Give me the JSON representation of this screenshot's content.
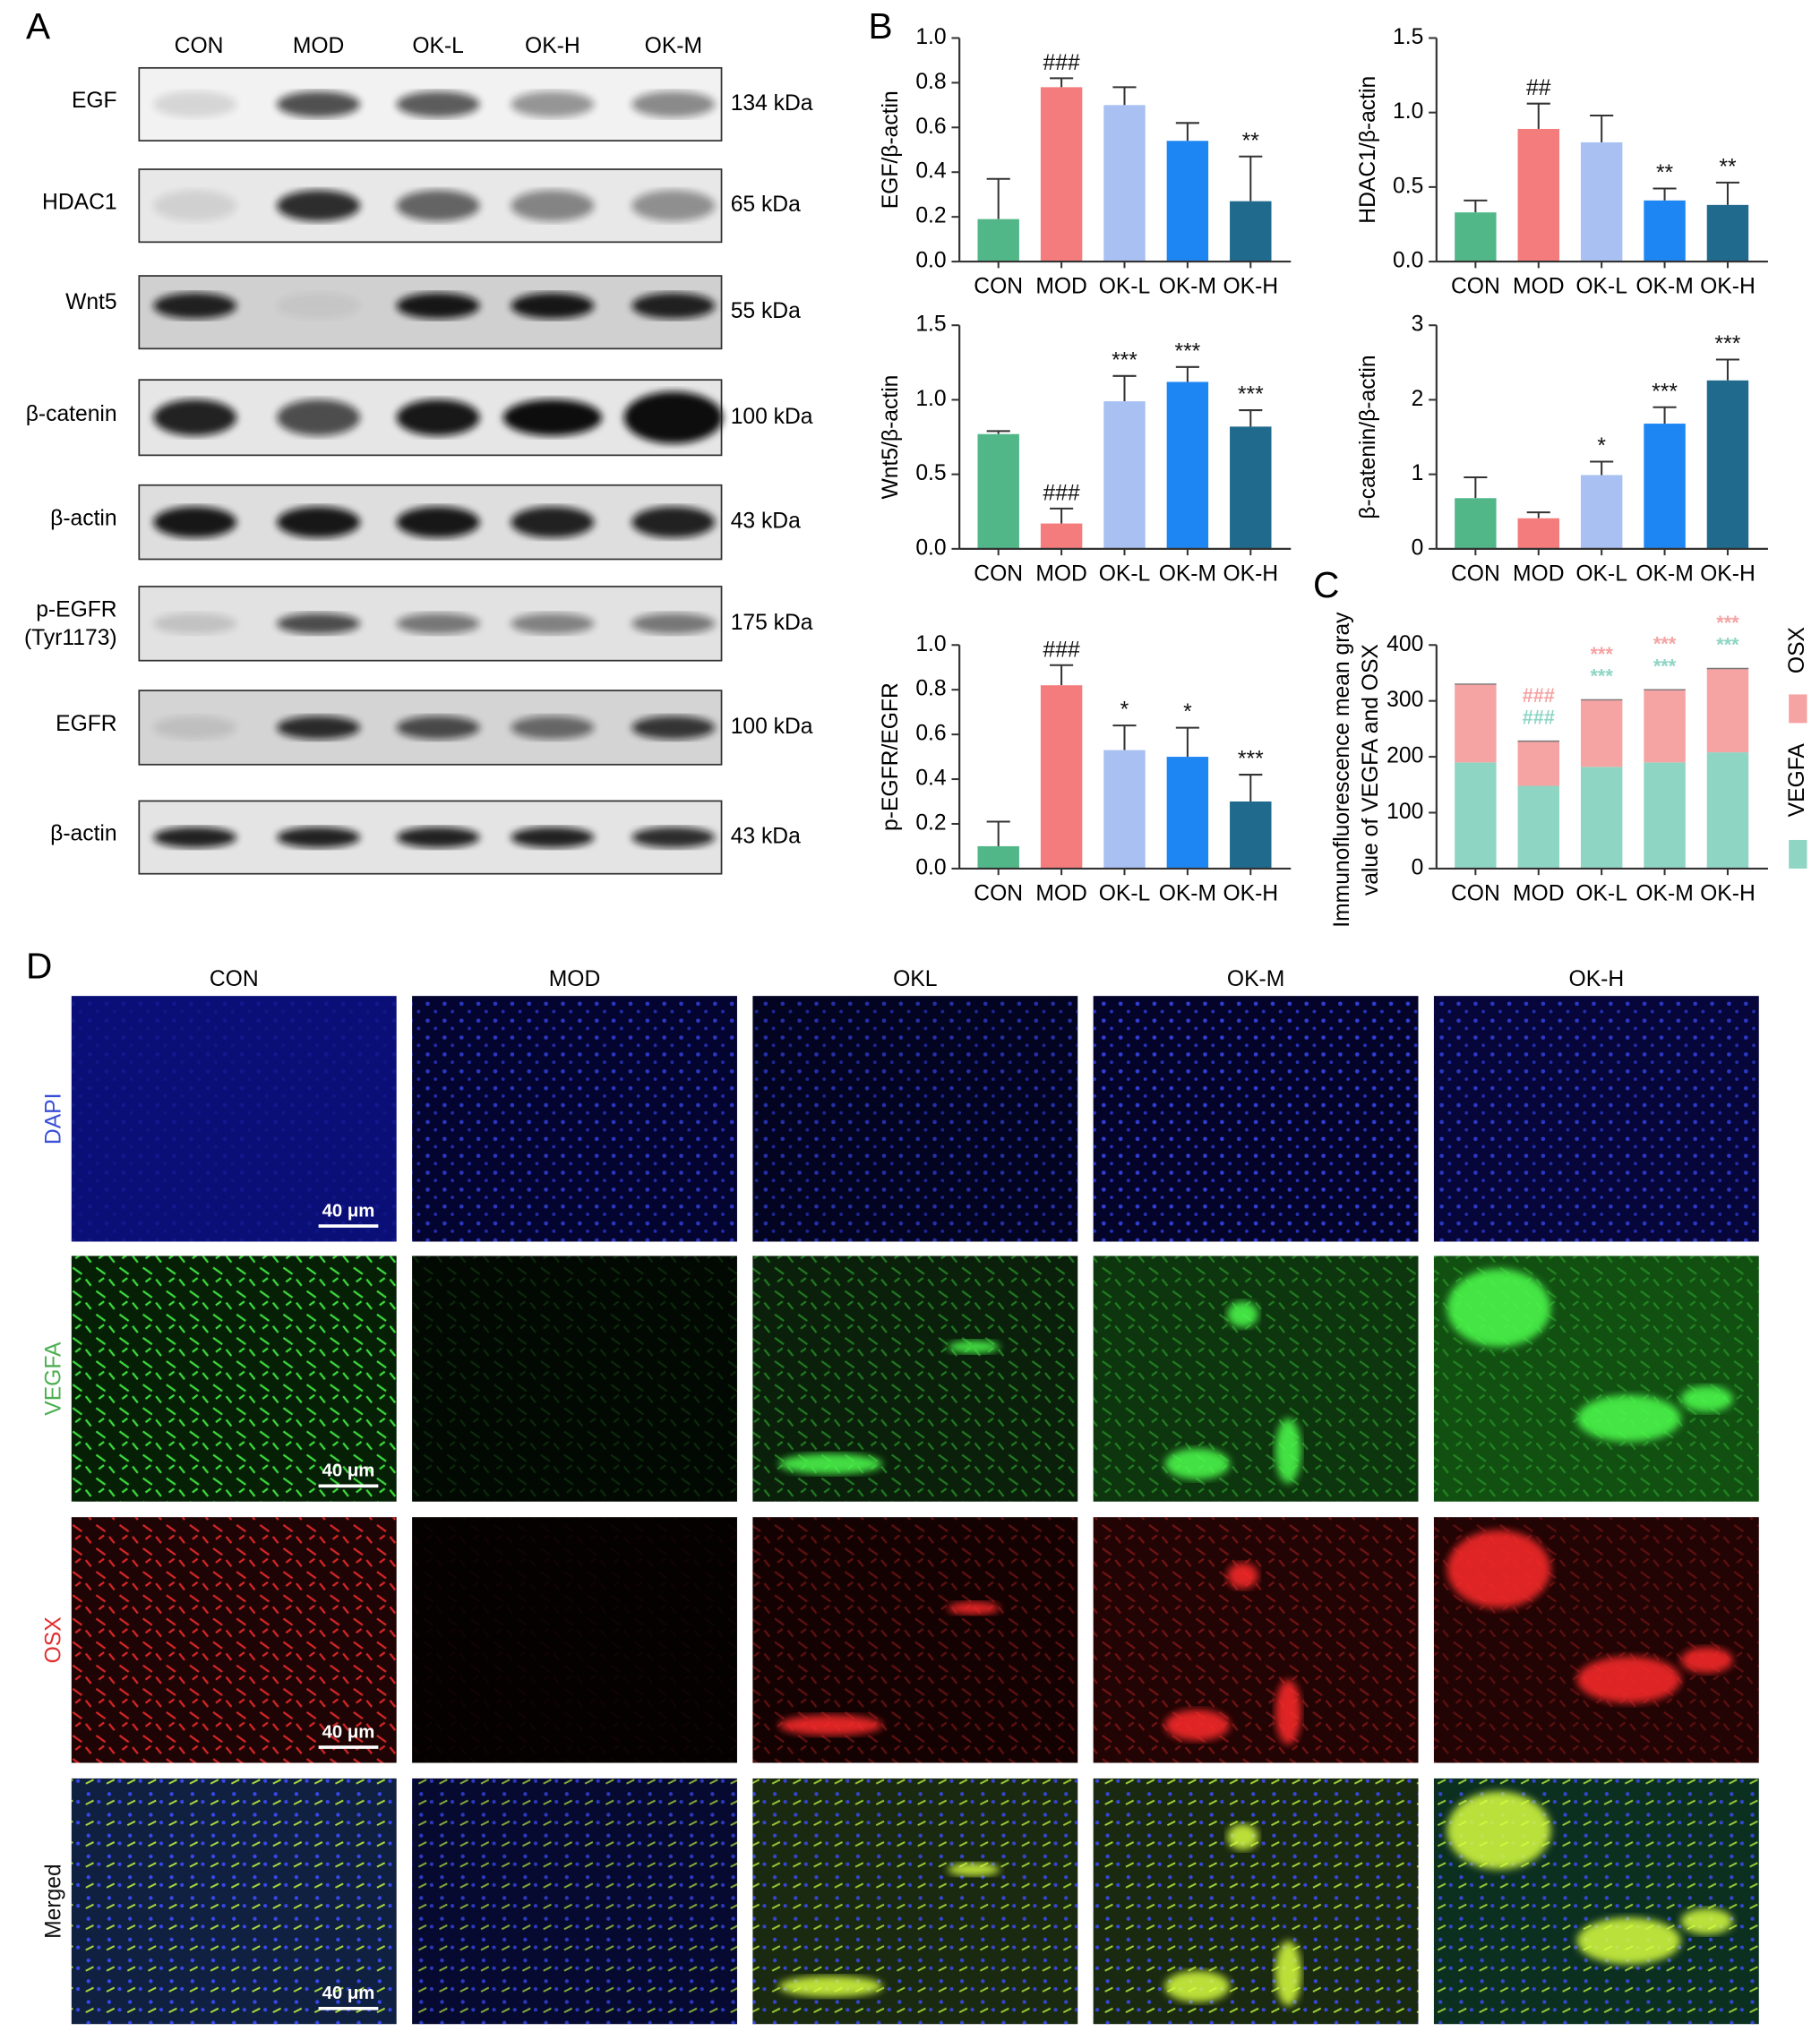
{
  "panel_labels": [
    "A",
    "B",
    "C",
    "D"
  ],
  "western_blot": {
    "lanes": [
      "CON",
      "MOD",
      "OK-L",
      "OK-H",
      "OK-M"
    ],
    "rows": [
      {
        "protein": "EGF",
        "size": "134 kDa"
      },
      {
        "protein": "HDAC1",
        "size": "65 kDa"
      },
      {
        "protein": "Wnt5",
        "size": "55 kDa"
      },
      {
        "protein": "β-catenin",
        "size": "100 kDa"
      },
      {
        "protein": "β-actin",
        "size": "43 kDa"
      },
      {
        "protein": [
          "p-EGFR",
          "(Tyr1173)"
        ],
        "size": "175 kDa"
      },
      {
        "protein": "EGFR",
        "size": "100 kDa"
      },
      {
        "protein": "β-actin",
        "size": "43 kDa"
      }
    ]
  },
  "chart_data": [
    {
      "type": "bar",
      "ylabel": "EGF/β-actin",
      "categories": [
        "CON",
        "MOD",
        "OK-L",
        "OK-M",
        "OK-H"
      ],
      "values": [
        0.19,
        0.78,
        0.7,
        0.54,
        0.27
      ],
      "errors": [
        0.18,
        0.04,
        0.08,
        0.08,
        0.2
      ],
      "colors": [
        "#52b788",
        "#f47c7c",
        "#a9c0f2",
        "#1e86f2",
        "#1f6a8d"
      ],
      "annotations": [
        null,
        "###",
        null,
        null,
        "**"
      ],
      "ylim": [
        0,
        1
      ],
      "yticks": [
        {
          "value": 0,
          "label": "0.0"
        },
        0.2,
        0.4,
        0.6,
        0.8,
        {
          "value": 1,
          "label": "1.0"
        }
      ]
    },
    {
      "type": "bar",
      "ylabel": "HDAC1/β-actin",
      "categories": [
        "CON",
        "MOD",
        "OK-L",
        "OK-M",
        "OK-H"
      ],
      "values": [
        0.33,
        0.89,
        0.8,
        0.41,
        0.38
      ],
      "errors": [
        0.08,
        0.17,
        0.18,
        0.08,
        0.15
      ],
      "colors": [
        "#52b788",
        "#f47c7c",
        "#a9c0f2",
        "#1e86f2",
        "#1f6a8d"
      ],
      "annotations": [
        null,
        "##",
        null,
        "**",
        "**"
      ],
      "ylim": [
        0,
        1.5
      ],
      "yticks": [
        {
          "value": 0,
          "label": "0.0"
        },
        0.5,
        {
          "value": 1,
          "label": "1.0"
        },
        1.5
      ]
    },
    {
      "type": "bar",
      "ylabel": "Wnt5/β-actin",
      "categories": [
        "CON",
        "MOD",
        "OK-L",
        "OK-M",
        "OK-H"
      ],
      "values": [
        0.77,
        0.17,
        0.99,
        1.12,
        0.82
      ],
      "errors": [
        0.02,
        0.1,
        0.17,
        0.1,
        0.11
      ],
      "colors": [
        "#52b788",
        "#f47c7c",
        "#a9c0f2",
        "#1e86f2",
        "#1f6a8d"
      ],
      "annotations": [
        null,
        "###",
        "***",
        "***",
        "***"
      ],
      "ylim": [
        0,
        1.5
      ],
      "yticks": [
        {
          "value": 0,
          "label": "0.0"
        },
        0.5,
        {
          "value": 1,
          "label": "1.0"
        },
        1.5
      ]
    },
    {
      "type": "bar",
      "ylabel": "β-catenin/β-actin",
      "categories": [
        "CON",
        "MOD",
        "OK-L",
        "OK-M",
        "OK-H"
      ],
      "values": [
        0.68,
        0.41,
        0.99,
        1.68,
        2.26
      ],
      "errors": [
        0.28,
        0.08,
        0.18,
        0.22,
        0.28
      ],
      "colors": [
        "#52b788",
        "#f47c7c",
        "#a9c0f2",
        "#1e86f2",
        "#1f6a8d"
      ],
      "annotations": [
        null,
        null,
        "*",
        "***",
        "***"
      ],
      "ylim": [
        0,
        3
      ],
      "yticks": [
        0,
        1,
        2,
        3
      ]
    },
    {
      "type": "bar",
      "ylabel": "p-EGFR/EGFR",
      "categories": [
        "CON",
        "MOD",
        "OK-L",
        "OK-M",
        "OK-H"
      ],
      "values": [
        0.1,
        0.82,
        0.53,
        0.5,
        0.3
      ],
      "errors": [
        0.11,
        0.09,
        0.11,
        0.13,
        0.12
      ],
      "colors": [
        "#52b788",
        "#f47c7c",
        "#a9c0f2",
        "#1e86f2",
        "#1f6a8d"
      ],
      "annotations": [
        null,
        "###",
        "*",
        "*",
        "***"
      ],
      "ylim": [
        0,
        1
      ],
      "yticks": [
        {
          "value": 0,
          "label": "0.0"
        },
        0.2,
        0.4,
        0.6,
        0.8,
        {
          "value": 1,
          "label": "1.0"
        }
      ]
    },
    {
      "type": "stacked_bar",
      "ylabel": [
        "Immunofluorescence mean gray",
        "value of VEGFA and OSX"
      ],
      "categories": [
        "CON",
        "MOD",
        "OK-L",
        "OK-M",
        "OK-H"
      ],
      "series": [
        {
          "name": "VEGFA",
          "color": "#8fd5c4",
          "values": [
            190,
            148,
            182,
            190,
            208
          ],
          "annotations": [
            null,
            "###",
            "***",
            "***",
            "***"
          ]
        },
        {
          "name": "OSX",
          "color": "#f5a3a3",
          "values": [
            140,
            80,
            120,
            130,
            150
          ],
          "annotations": [
            null,
            "###",
            "***",
            "***",
            "***"
          ]
        }
      ],
      "ylim": [
        0,
        400
      ],
      "yticks": [
        0,
        100,
        200,
        300,
        400
      ]
    }
  ],
  "immunofluorescence": {
    "groups": [
      "CON",
      "MOD",
      "OKL",
      "OK-M",
      "OK-H"
    ],
    "stains": [
      "DAPI",
      "VEGFA",
      "OSX",
      "Merged"
    ],
    "scale_bar": "40 μm"
  }
}
